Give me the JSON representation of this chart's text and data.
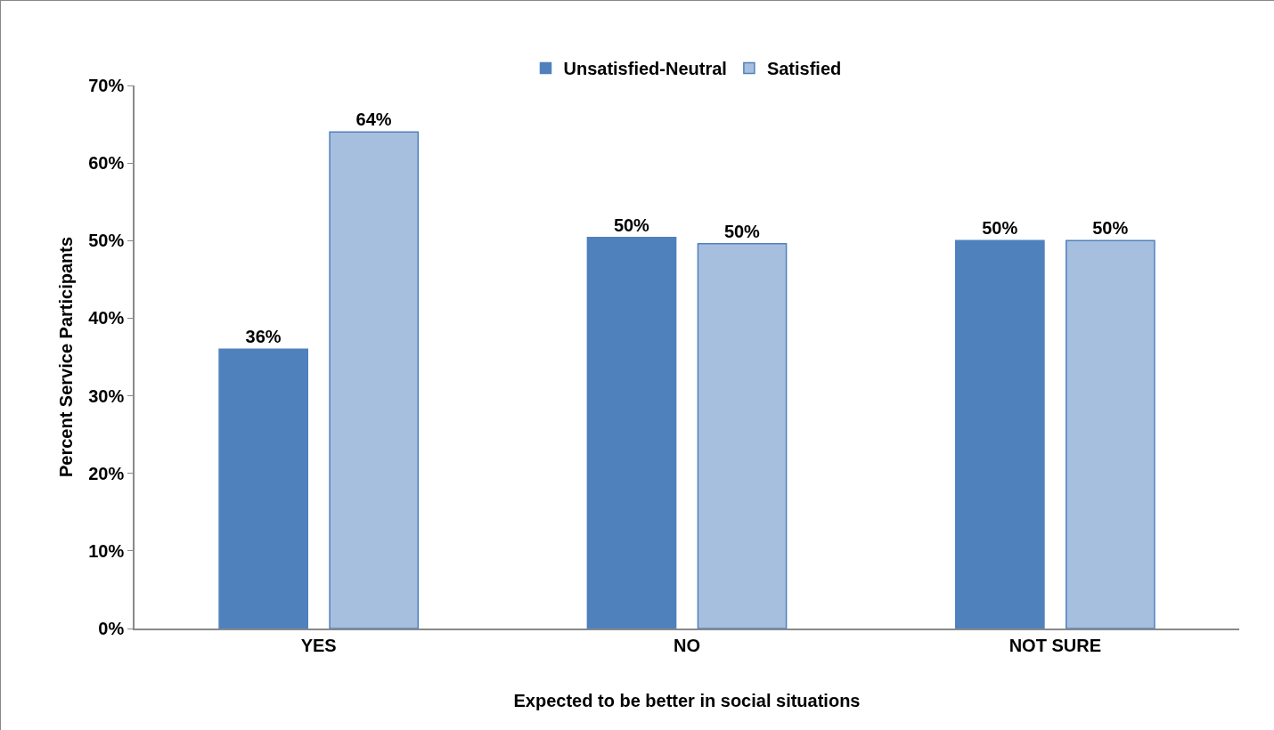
{
  "chart_data": {
    "type": "bar",
    "xlabel": "Expected to be better in social situations",
    "ylabel": "Percent Service Participants",
    "categories": [
      "YES",
      "NO",
      "NOT SURE"
    ],
    "series": [
      {
        "name": "Unsatisfied-Neutral",
        "color": "#4f81bd",
        "values": [
          36,
          50.4,
          50
        ],
        "value_labels": [
          "36%",
          "50%",
          "50%"
        ]
      },
      {
        "name": "Satisfied",
        "color": "#a7bfdf",
        "values": [
          64,
          49.6,
          50
        ],
        "value_labels": [
          "64%",
          "50%",
          "50%"
        ]
      }
    ],
    "ylim": [
      0,
      70
    ],
    "yticks": [
      {
        "value": 0,
        "label": "0%"
      },
      {
        "value": 10,
        "label": "10%"
      },
      {
        "value": 20,
        "label": "20%"
      },
      {
        "value": 30,
        "label": "30%"
      },
      {
        "value": 40,
        "label": "40%"
      },
      {
        "value": 50,
        "label": "50%"
      },
      {
        "value": 60,
        "label": "60%"
      },
      {
        "value": 70,
        "label": "70%"
      }
    ],
    "grid": false,
    "legend": "top"
  }
}
